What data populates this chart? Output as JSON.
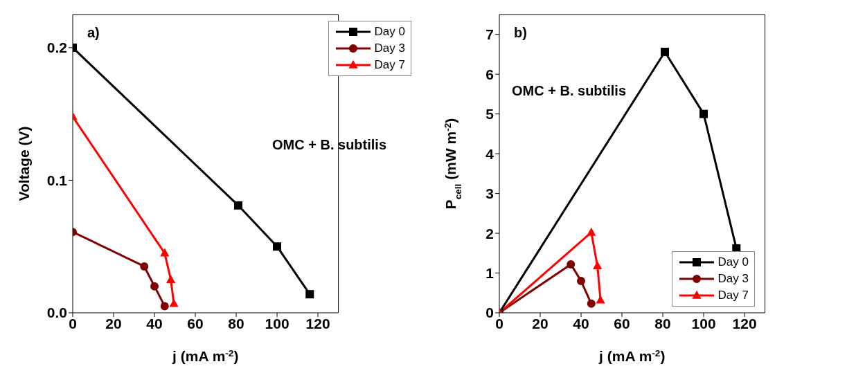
{
  "chart_data": [
    {
      "type": "line",
      "xlabel": "j (mA m$^{-2}$)",
      "ylabel": "Voltage (V)",
      "annotations": [
        "a)",
        "OMC + B. subtilis"
      ],
      "legend": "top right",
      "xlim": [
        0,
        130
      ],
      "xticks": [
        0,
        20,
        40,
        60,
        80,
        100,
        120
      ],
      "ylim": [
        0,
        0.225
      ],
      "yticks": [
        {
          "value": 0,
          "label": "0.0"
        },
        0.1,
        0.2
      ],
      "series": [
        {
          "name": "Day 0",
          "color": "#000000",
          "marker": "square",
          "x": [
            0,
            81,
            100,
            116
          ],
          "values": [
            0.2,
            0.081,
            0.05,
            0.014
          ]
        },
        {
          "name": "Day 3",
          "color": "#800000",
          "marker": "circle",
          "x": [
            0,
            35,
            40,
            45
          ],
          "values": [
            0.061,
            0.035,
            0.02,
            0.005
          ]
        },
        {
          "name": "Day 7",
          "color": "#ff0000",
          "marker": "triangle",
          "x": [
            0,
            45,
            48,
            49.5
          ],
          "values": [
            0.148,
            0.045,
            0.025,
            0.007
          ]
        }
      ]
    },
    {
      "type": "line",
      "xlabel": "j (mA m$^{-2}$)",
      "ylabel": "P$_{cell}$ (mW m$^{-2}$)",
      "annotations": [
        "b)",
        "OMC + B. subtilis"
      ],
      "legend": "bottom right",
      "xlim": [
        0,
        130
      ],
      "xticks": [
        0,
        20,
        40,
        60,
        80,
        100,
        120
      ],
      "ylim": [
        0,
        7.5
      ],
      "yticks": [
        0,
        1,
        2,
        3,
        4,
        5,
        6,
        7
      ],
      "series": [
        {
          "name": "Day 0",
          "color": "#000000",
          "marker": "square",
          "x": [
            0,
            81,
            100,
            116
          ],
          "values": [
            0,
            6.56,
            5.0,
            1.62
          ]
        },
        {
          "name": "Day 3",
          "color": "#800000",
          "marker": "circle",
          "x": [
            0,
            35,
            40,
            45
          ],
          "values": [
            0,
            1.22,
            0.8,
            0.23
          ]
        },
        {
          "name": "Day 7",
          "color": "#ff0000",
          "marker": "triangle",
          "x": [
            0,
            45,
            48,
            49.5
          ],
          "values": [
            0,
            2.02,
            1.18,
            0.32
          ]
        }
      ]
    }
  ]
}
